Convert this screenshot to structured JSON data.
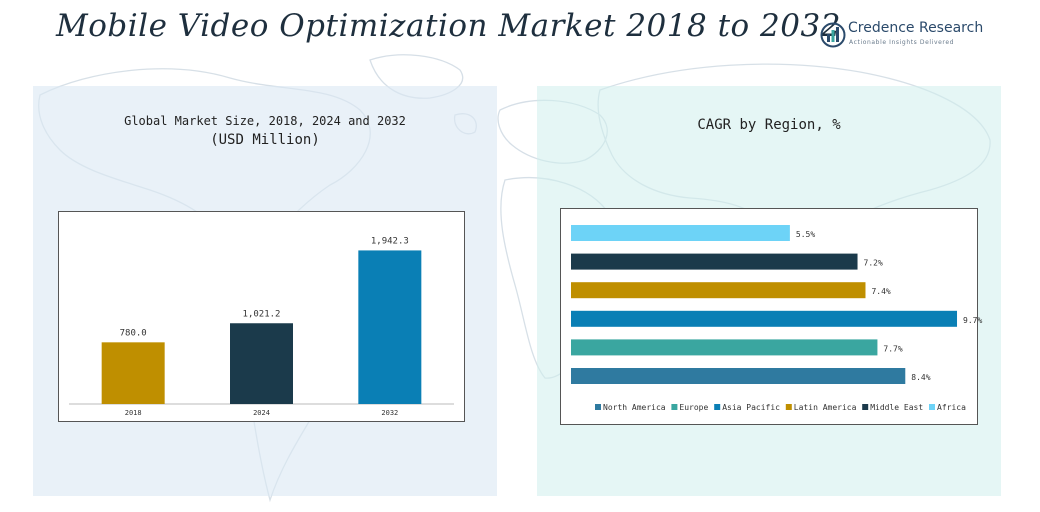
{
  "header": {
    "title": "Mobile Video Optimization Market 2018 to 2032",
    "logo_name": "Credence Research",
    "logo_tagline": "Actionable Insights Delivered"
  },
  "chart_data": [
    {
      "type": "bar",
      "title": "Global Market Size, 2018, 2024 and 2032",
      "subtitle": "(USD Million)",
      "categories": [
        "2018",
        "2024",
        "2032"
      ],
      "values": [
        780.0,
        1021.2,
        1942.3
      ],
      "value_labels": [
        "780.0",
        "1,021.2",
        "1,942.3"
      ],
      "colors": [
        "#bf8f00",
        "#1b3a4b",
        "#0a7fb5"
      ],
      "ylim": [
        0,
        2150
      ],
      "grid": false,
      "legend": "none"
    },
    {
      "type": "bar",
      "orientation": "horizontal",
      "title": "CAGR by Region, %",
      "categories": [
        "Africa",
        "Middle East",
        "Latin America",
        "Asia Pacific",
        "Europe",
        "North America"
      ],
      "values": [
        5.5,
        7.2,
        7.4,
        9.7,
        7.7,
        8.4
      ],
      "value_labels": [
        "5.5%",
        "7.2%",
        "7.4%",
        "9.7%",
        "7.7%",
        "8.4%"
      ],
      "colors": [
        "#6dd3f7",
        "#1b3a4b",
        "#bf8f00",
        "#0a7fb5",
        "#3aa6a0",
        "#2f7aa0"
      ],
      "legend_order": [
        "North America",
        "Europe",
        "Asia Pacific",
        "Latin America",
        "Middle East",
        "Africa"
      ],
      "xlim": [
        0,
        9.8
      ],
      "grid": false,
      "legend": "bottom"
    }
  ]
}
